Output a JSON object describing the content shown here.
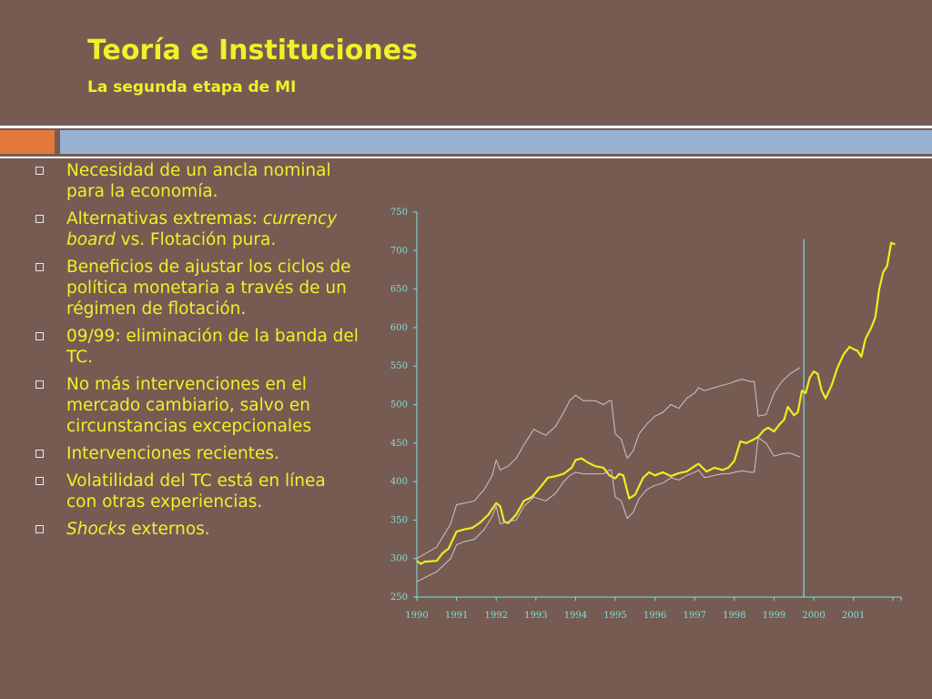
{
  "slide": {
    "title": "Teoría e Instituciones",
    "subtitle": "La segunda etapa de MI",
    "bullets": [
      {
        "parts": [
          {
            "text": "Necesidad de un ancla nominal para la economía.",
            "italic": false
          }
        ]
      },
      {
        "parts": [
          {
            "text": "Alternativas extremas: ",
            "italic": false
          },
          {
            "text": "currency board",
            "italic": true
          },
          {
            "text": " vs. Flotación pura.",
            "italic": false
          }
        ]
      },
      {
        "parts": [
          {
            "text": "Beneficios de ajustar los ciclos de política monetaria a través de un régimen de flotación.",
            "italic": false
          }
        ]
      },
      {
        "parts": [
          {
            "text": "09/99: eliminación de la banda del TC.",
            "italic": false
          }
        ]
      },
      {
        "parts": [
          {
            "text": "No más intervenciones en el mercado cambiario, salvo en circunstancias excepcionales",
            "italic": false
          }
        ]
      },
      {
        "parts": [
          {
            "text": "Intervenciones recientes.",
            "italic": false
          }
        ]
      },
      {
        "parts": [
          {
            "text": "Volatilidad del TC está en línea con otras experiencias.",
            "italic": false
          }
        ]
      },
      {
        "parts": [
          {
            "text": "Shocks",
            "italic": true
          },
          {
            "text": " externos.",
            "italic": false
          }
        ]
      }
    ],
    "colors": {
      "background": "#765b52",
      "text": "#f1f02a",
      "accent_orange": "#e3783f",
      "accent_blue": "#98b1d2",
      "axis": "#7fe0dd",
      "exchange_rate_line": "#f0ec1e",
      "band_line": "#c7c7c7"
    }
  },
  "chart_data": {
    "type": "line",
    "title": "",
    "xlabel": "",
    "ylabel": "",
    "ylim": [
      250,
      750
    ],
    "xlim": [
      1990,
      2002.2
    ],
    "yticks": [
      250,
      300,
      350,
      400,
      450,
      500,
      550,
      600,
      650,
      700,
      750
    ],
    "xticks": [
      "1990",
      "1991",
      "1992",
      "1993",
      "1994",
      "1995",
      "1996",
      "1997",
      "1998",
      "1999",
      "2000",
      "2001"
    ],
    "grid": false,
    "vline_x": 1999.75,
    "series": [
      {
        "key": "exchange_rate",
        "color": "#f0ec1e",
        "x": [
          1990.0,
          1990.1,
          1990.2,
          1990.5,
          1990.65,
          1990.8,
          1991.0,
          1991.2,
          1991.4,
          1991.6,
          1991.8,
          1992.0,
          1992.1,
          1992.2,
          1992.3,
          1992.5,
          1992.7,
          1992.9,
          1993.1,
          1993.3,
          1993.5,
          1993.7,
          1993.9,
          1994.0,
          1994.15,
          1994.3,
          1994.5,
          1994.7,
          1994.85,
          1995.0,
          1995.1,
          1995.2,
          1995.35,
          1995.5,
          1995.7,
          1995.85,
          1996.0,
          1996.2,
          1996.4,
          1996.6,
          1996.8,
          1997.0,
          1997.1,
          1997.3,
          1997.5,
          1997.7,
          1997.85,
          1998.0,
          1998.15,
          1998.3,
          1998.5,
          1998.6,
          1998.75,
          1998.85,
          1999.0,
          1999.15,
          1999.25,
          1999.35,
          1999.5,
          1999.6,
          1999.7,
          1999.8,
          1999.9,
          2000.0,
          2000.1,
          2000.2,
          2000.3,
          2000.45,
          2000.6,
          2000.75,
          2000.9,
          2001.0,
          2001.1,
          2001.2,
          2001.3,
          2001.45,
          2001.55,
          2001.65,
          2001.75,
          2001.85,
          2001.95,
          2002.05
        ],
        "y": [
          297,
          293,
          296,
          297,
          307,
          313,
          335,
          338,
          340,
          347,
          357,
          372,
          368,
          348,
          346,
          357,
          375,
          380,
          392,
          405,
          407,
          410,
          418,
          428,
          430,
          425,
          420,
          418,
          408,
          404,
          410,
          408,
          378,
          383,
          405,
          412,
          408,
          412,
          407,
          411,
          413,
          420,
          423,
          413,
          418,
          415,
          418,
          427,
          452,
          450,
          455,
          458,
          467,
          470,
          465,
          475,
          480,
          497,
          486,
          490,
          518,
          515,
          535,
          543,
          540,
          518,
          508,
          525,
          548,
          565,
          575,
          572,
          570,
          562,
          585,
          600,
          613,
          650,
          672,
          680,
          710,
          708
        ]
      },
      {
        "key": "upper_band",
        "color": "#c7c7c7",
        "x": [
          1990.0,
          1990.5,
          1990.85,
          1991.0,
          1991.2,
          1991.45,
          1991.7,
          1991.9,
          1992.0,
          1992.1,
          1992.3,
          1992.5,
          1992.7,
          1992.85,
          1992.95,
          1993.05,
          1993.25,
          1993.5,
          1993.7,
          1993.85,
          1994.0,
          1994.2,
          1994.5,
          1994.7,
          1994.85,
          1994.9,
          1995.0,
          1995.15,
          1995.3,
          1995.45,
          1995.6,
          1995.8,
          1996.0,
          1996.2,
          1996.4,
          1996.6,
          1996.8,
          1997.0,
          1997.1,
          1997.25,
          1997.5,
          1997.7,
          1997.85,
          1998.0,
          1998.2,
          1998.4,
          1998.5,
          1998.6,
          1998.8,
          1999.0,
          1999.2,
          1999.4,
          1999.65
        ],
        "y": [
          300,
          315,
          345,
          370,
          372,
          375,
          390,
          408,
          428,
          415,
          420,
          430,
          448,
          460,
          468,
          465,
          460,
          472,
          490,
          505,
          512,
          505,
          505,
          500,
          505,
          505,
          462,
          455,
          430,
          440,
          462,
          475,
          485,
          490,
          500,
          495,
          508,
          515,
          522,
          518,
          522,
          525,
          527,
          530,
          533,
          530,
          530,
          485,
          487,
          515,
          530,
          540,
          548
        ]
      },
      {
        "key": "lower_band",
        "color": "#c7c7c7",
        "x": [
          1990.0,
          1990.5,
          1990.85,
          1991.0,
          1991.2,
          1991.45,
          1991.7,
          1991.9,
          1992.0,
          1992.1,
          1992.3,
          1992.5,
          1992.7,
          1992.85,
          1992.95,
          1993.05,
          1993.25,
          1993.5,
          1993.7,
          1993.85,
          1994.0,
          1994.2,
          1994.5,
          1994.7,
          1994.85,
          1994.9,
          1995.0,
          1995.15,
          1995.3,
          1995.45,
          1995.6,
          1995.8,
          1996.0,
          1996.2,
          1996.4,
          1996.6,
          1996.8,
          1997.0,
          1997.1,
          1997.25,
          1997.5,
          1997.7,
          1997.85,
          1998.0,
          1998.2,
          1998.4,
          1998.5,
          1998.6,
          1998.8,
          1999.0,
          1999.2,
          1999.4,
          1999.65
        ],
        "y": [
          270,
          283,
          300,
          318,
          322,
          325,
          338,
          355,
          368,
          345,
          348,
          350,
          368,
          375,
          380,
          378,
          375,
          385,
          400,
          408,
          412,
          410,
          410,
          410,
          415,
          415,
          380,
          375,
          352,
          360,
          378,
          390,
          395,
          398,
          405,
          402,
          408,
          412,
          415,
          405,
          408,
          410,
          410,
          412,
          414,
          412,
          412,
          457,
          450,
          433,
          436,
          437,
          432
        ]
      }
    ]
  }
}
